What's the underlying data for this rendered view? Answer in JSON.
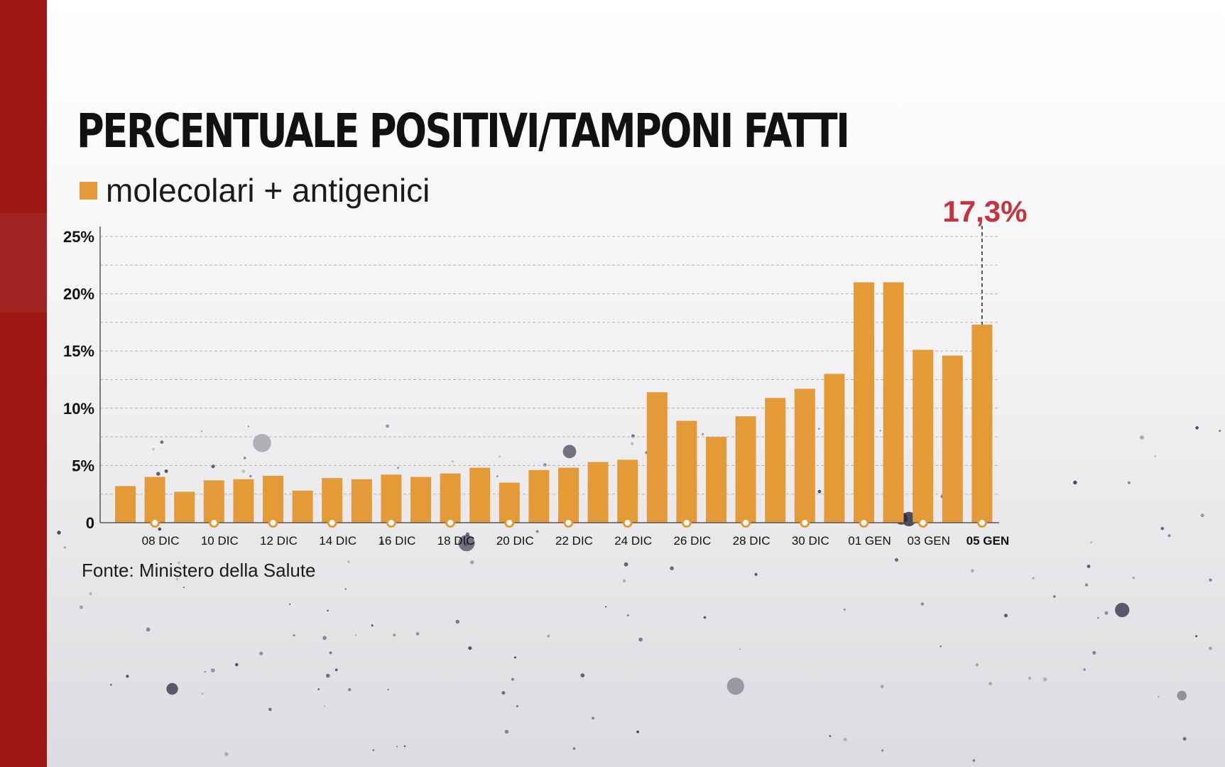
{
  "title": "PERCENTUALE POSITIVI/TAMPONI FATTI",
  "legend": {
    "label": "molecolari + antigenici"
  },
  "source": "Fonte: Ministero della Salute",
  "colors": {
    "bar": "#e49a37",
    "highlight": "#c8323d",
    "band": "#9e1816",
    "text": "#111111",
    "grid": "#b4b4b8"
  },
  "chart_data": {
    "type": "bar",
    "ylim": [
      0,
      25
    ],
    "yticks": [
      {
        "value": 0,
        "label": "0"
      },
      {
        "value": 5,
        "label": "5%"
      },
      {
        "value": 10,
        "label": "10%"
      },
      {
        "value": 15,
        "label": "15%"
      },
      {
        "value": 20,
        "label": "20%"
      },
      {
        "value": 25,
        "label": "25%"
      }
    ],
    "grid": "dashed, every 2.5",
    "values": [
      3.2,
      4.0,
      2.7,
      3.7,
      3.8,
      4.1,
      2.8,
      3.9,
      3.8,
      4.2,
      4.0,
      4.3,
      4.8,
      3.5,
      4.6,
      4.8,
      5.3,
      5.5,
      11.4,
      8.9,
      7.5,
      9.3,
      10.9,
      11.7,
      13.0,
      21.0,
      21.0,
      15.1,
      14.6,
      17.3
    ],
    "xlabels": [
      {
        "bar_index": 1,
        "label": "08 DIC"
      },
      {
        "bar_index": 3,
        "label": "10 DIC"
      },
      {
        "bar_index": 5,
        "label": "12 DIC"
      },
      {
        "bar_index": 7,
        "label": "14 DIC"
      },
      {
        "bar_index": 9,
        "label": "16 DIC"
      },
      {
        "bar_index": 11,
        "label": "18 DIC"
      },
      {
        "bar_index": 13,
        "label": "20 DIC"
      },
      {
        "bar_index": 15,
        "label": "22 DIC"
      },
      {
        "bar_index": 17,
        "label": "24 DIC"
      },
      {
        "bar_index": 19,
        "label": "26 DIC"
      },
      {
        "bar_index": 21,
        "label": "28 DIC"
      },
      {
        "bar_index": 23,
        "label": "30 DIC"
      },
      {
        "bar_index": 25,
        "label": "01 GEN"
      },
      {
        "bar_index": 27,
        "label": "03 GEN"
      },
      {
        "bar_index": 29,
        "label": "05 GEN"
      }
    ],
    "highlight": {
      "bar_index": 29,
      "label": "17,3%"
    }
  }
}
